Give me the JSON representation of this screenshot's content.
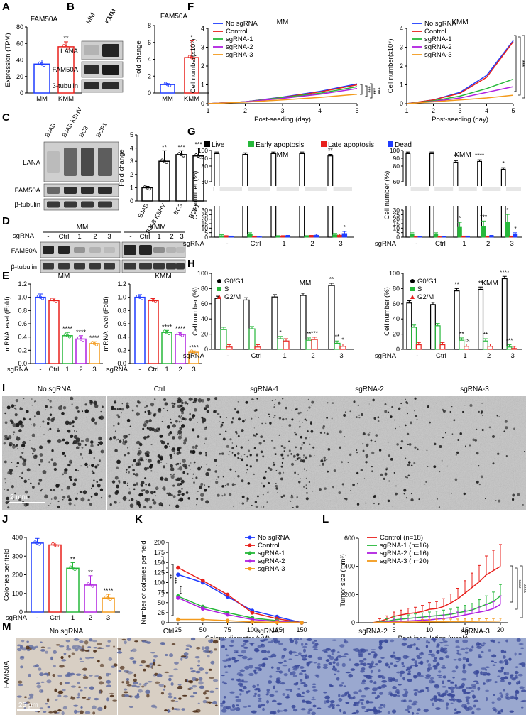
{
  "panel_labels": [
    "A",
    "B",
    "C",
    "D",
    "E",
    "F",
    "G",
    "H",
    "I",
    "J",
    "K",
    "L",
    "M"
  ],
  "stars": {
    "s1": "*",
    "s2": "**",
    "s3": "***",
    "s4": "****",
    "ns": "ns"
  },
  "colors": {
    "blue": "#1f3cff",
    "red": "#e8201c",
    "green": "#26b83a",
    "purple": "#b020e0",
    "orange": "#f39a1c",
    "black": "#000000",
    "gray": "#555555"
  },
  "blots": {
    "B": {
      "cols": [
        "MM",
        "KMM"
      ],
      "rows": [
        "LANA",
        "FAM50A",
        "β-tubulin"
      ]
    },
    "C": {
      "cols": [
        "BJAB",
        "BJAB KSHV",
        "BC3",
        "BCP1"
      ],
      "rows": [
        "LANA",
        "FAM50A",
        "β-tubulin"
      ]
    },
    "D": {
      "groups": [
        "MM",
        "KMM"
      ],
      "sgrna_label": "sgRNA",
      "lanes": [
        "-",
        "Ctrl",
        "1",
        "2",
        "3"
      ],
      "rows": [
        "FAM50A",
        "β-tubulin"
      ]
    }
  },
  "images": {
    "I": {
      "labels": [
        "No sgRNA",
        "Ctrl",
        "sgRNA-1",
        "sgRNA-2",
        "sgRNA-3"
      ],
      "scale": "2 mm"
    },
    "M": {
      "labels": [
        "No sgRNA",
        "Ctrl",
        "sgRNA-1",
        "sgRNA-2",
        "sgRNA-3"
      ],
      "side": "FAM50A",
      "scale": "25 μm"
    }
  },
  "chart_data": [
    {
      "id": "A",
      "type": "bar",
      "title": "FAM50A",
      "categories": [
        "MM",
        "KMM"
      ],
      "values": [
        35,
        56
      ],
      "errors": [
        5,
        6
      ],
      "ylabel": "Expression (TPM)",
      "ylim": [
        0,
        80
      ],
      "yticks": [
        0,
        20,
        40,
        60,
        80
      ],
      "sig": [
        "",
        "**"
      ]
    },
    {
      "id": "B",
      "type": "bar",
      "title": "FAM50A",
      "categories": [
        "MM",
        "KMM"
      ],
      "values": [
        1,
        4.2
      ],
      "errors": [
        0.1,
        2
      ],
      "ylabel": "Fold change",
      "ylim": [
        0,
        8
      ],
      "yticks": [
        0,
        2,
        4,
        6,
        8
      ],
      "sig": [
        "",
        "*"
      ]
    },
    {
      "id": "C",
      "type": "bar",
      "categories": [
        "BJAB",
        "BJAB KSHV",
        "BC3",
        "BCP1"
      ],
      "values": [
        1,
        3,
        3.5,
        3.4
      ],
      "errors": [
        0.1,
        0.8,
        0.3,
        0.6
      ],
      "ylabel": "Fold change",
      "ylim": [
        0,
        5
      ],
      "yticks": [
        0,
        1,
        2,
        3,
        4,
        5
      ],
      "sig": [
        "",
        "**",
        "***",
        "***"
      ]
    },
    {
      "id": "E1",
      "type": "bar",
      "title": "MM",
      "categories": [
        "-",
        "Ctrl",
        "1",
        "2",
        "3"
      ],
      "xlabel": "sgRNA",
      "values": [
        1.0,
        0.95,
        0.42,
        0.37,
        0.3
      ],
      "errors": [
        0.05,
        0.04,
        0.05,
        0.05,
        0.03
      ],
      "ylabel": "mRNA level (Fold)",
      "ylim": [
        0,
        1.2
      ],
      "yticks": [
        0,
        0.2,
        0.4,
        0.6,
        0.8,
        1.0,
        1.2
      ],
      "sig": [
        "",
        "",
        "****",
        "****",
        "****"
      ]
    },
    {
      "id": "E2",
      "type": "bar",
      "title": "KMM",
      "categories": [
        "-",
        "Ctrl",
        "1",
        "2",
        "3"
      ],
      "xlabel": "sgRNA",
      "values": [
        1.0,
        0.95,
        0.47,
        0.44,
        0.17
      ],
      "errors": [
        0.04,
        0.03,
        0.03,
        0.03,
        0.02
      ],
      "ylabel": "mRNA level (Fold)",
      "ylim": [
        0,
        1.2
      ],
      "yticks": [
        0,
        0.2,
        0.4,
        0.6,
        0.8,
        1.0,
        1.2
      ],
      "sig": [
        "",
        "",
        "****",
        "****",
        "****"
      ]
    },
    {
      "id": "F1",
      "type": "line",
      "title": "MM",
      "x": [
        1,
        2,
        3,
        4,
        5
      ],
      "xlabel": "Post-seeding (day)",
      "ylabel": "Cell number(x10⁶)",
      "ylim": [
        0,
        4
      ],
      "yticks": [
        0,
        1,
        2,
        3,
        4
      ],
      "legend": "top-left",
      "series": [
        {
          "name": "No sgRNA",
          "values": [
            0,
            0.1,
            0.35,
            0.65,
            1.05
          ]
        },
        {
          "name": "Control",
          "values": [
            0,
            0.1,
            0.33,
            0.62,
            1.0
          ]
        },
        {
          "name": "sgRNA-1",
          "values": [
            0,
            0.1,
            0.32,
            0.55,
            0.9
          ]
        },
        {
          "name": "sgRNA-2",
          "values": [
            0,
            0.1,
            0.28,
            0.5,
            0.8
          ]
        },
        {
          "name": "sgRNA-3",
          "values": [
            0,
            0.08,
            0.2,
            0.33,
            0.5
          ]
        }
      ],
      "sig": [
        "***",
        "***",
        "***"
      ]
    },
    {
      "id": "F2",
      "type": "line",
      "title": "KMM",
      "x": [
        1,
        2,
        3,
        4,
        5
      ],
      "xlabel": "Post-seeding (day)",
      "ylabel": "Cell number(x10⁶)",
      "ylim": [
        0,
        4
      ],
      "yticks": [
        0,
        1,
        2,
        3,
        4
      ],
      "legend": "top-left",
      "series": [
        {
          "name": "No sgRNA",
          "values": [
            0,
            0.2,
            0.6,
            1.5,
            3.35
          ]
        },
        {
          "name": "Control",
          "values": [
            0,
            0.2,
            0.55,
            1.4,
            3.3
          ]
        },
        {
          "name": "sgRNA-1",
          "values": [
            0,
            0.15,
            0.4,
            0.8,
            1.3
          ]
        },
        {
          "name": "sgRNA-2",
          "values": [
            0,
            0.12,
            0.3,
            0.6,
            0.9
          ]
        },
        {
          "name": "sgRNA-3",
          "values": [
            0,
            0.1,
            0.2,
            0.3,
            0.45
          ]
        }
      ],
      "sig": [
        "***",
        "***",
        "***"
      ]
    },
    {
      "id": "G1",
      "type": "bar",
      "title": "MM",
      "legend": [
        "Live",
        "Early apoptosis",
        "Late apoptosis",
        "Dead"
      ],
      "categories": [
        "-",
        "Ctrl",
        "1",
        "2",
        "3"
      ],
      "xlabel": "sgRNA",
      "ylabel": "Cell number (%)",
      "series": [
        {
          "name": "Live",
          "values": [
            96,
            95,
            96,
            96,
            93
          ]
        },
        {
          "name": "Early apoptosis",
          "values": [
            1.5,
            3,
            0.8,
            0.8,
            2.5
          ]
        },
        {
          "name": "Late apoptosis",
          "values": [
            0.8,
            0.5,
            0.8,
            1,
            2
          ]
        },
        {
          "name": "Dead",
          "values": [
            0.5,
            0.3,
            1,
            2,
            4
          ]
        }
      ],
      "sig": [
        "",
        "",
        "",
        "",
        "**"
      ],
      "sig_dead": [
        "",
        "",
        "",
        "",
        "*"
      ]
    },
    {
      "id": "G2",
      "type": "bar",
      "title": "KMM",
      "categories": [
        "-",
        "Ctrl",
        "1",
        "2",
        "3"
      ],
      "xlabel": "sgRNA",
      "ylabel": "Cell number (%)",
      "series": [
        {
          "name": "Live",
          "values": [
            96,
            96,
            85,
            86,
            76
          ]
        },
        {
          "name": "Early apoptosis",
          "values": [
            3,
            3,
            11,
            12,
            17
          ]
        },
        {
          "name": "Late apoptosis",
          "values": [
            0.3,
            0.3,
            0.5,
            0.5,
            0.5
          ]
        },
        {
          "name": "Dead",
          "values": [
            0.2,
            0.2,
            0.5,
            1,
            3
          ]
        }
      ],
      "sig": [
        "",
        "",
        "**",
        "****",
        "*"
      ],
      "sig_early": [
        "",
        "",
        "*",
        "***",
        "*"
      ],
      "sig_dead": [
        "",
        "",
        "",
        "",
        "*"
      ]
    },
    {
      "id": "H1",
      "type": "bar",
      "title": "MM",
      "legend": [
        "G0/G1",
        "S",
        "G2/M"
      ],
      "categories": [
        "-",
        "Ctrl",
        "1",
        "2",
        "3"
      ],
      "xlabel": "sgRNA",
      "ylabel": "Cell number (%)",
      "ylim": [
        0,
        100
      ],
      "yticks": [
        0,
        20,
        40,
        60,
        80,
        100
      ],
      "series": [
        {
          "name": "G0/G1",
          "values": [
            67,
            65,
            69,
            71,
            84
          ]
        },
        {
          "name": "S",
          "values": [
            26,
            27,
            14,
            12,
            8
          ]
        },
        {
          "name": "G2/M",
          "values": [
            3,
            3,
            11,
            13,
            4
          ]
        }
      ],
      "sig_g": [
        "",
        "",
        "",
        "",
        "**"
      ],
      "sig_s": [
        "",
        "",
        "*",
        "**",
        "**"
      ],
      "sig_m": [
        "",
        "",
        "",
        "***",
        "*"
      ]
    },
    {
      "id": "H2",
      "type": "bar",
      "title": "KMM",
      "categories": [
        "-",
        "Ctrl",
        "1",
        "2",
        "3"
      ],
      "xlabel": "sgRNA",
      "ylabel": "Cell number (%)",
      "ylim": [
        0,
        100
      ],
      "yticks": [
        0,
        20,
        40,
        60,
        80,
        100
      ],
      "series": [
        {
          "name": "G0/G1",
          "values": [
            61,
            59,
            77,
            79,
            93
          ]
        },
        {
          "name": "S",
          "values": [
            29,
            31,
            12,
            11,
            3
          ]
        },
        {
          "name": "G2/M",
          "values": [
            6,
            6,
            4,
            4,
            1
          ]
        }
      ],
      "sig_g": [
        "",
        "",
        "**",
        "**",
        "****"
      ],
      "sig_s": [
        "",
        "",
        "**",
        "**",
        "***"
      ],
      "sig_m": [
        "",
        "",
        "ns",
        "",
        ""
      ]
    },
    {
      "id": "J",
      "type": "bar",
      "categories": [
        "-",
        "Ctrl",
        "1",
        "2",
        "3"
      ],
      "xlabel": "sgRNA",
      "ylabel": "Colonies per field",
      "values": [
        370,
        360,
        235,
        145,
        75
      ],
      "errors": [
        25,
        15,
        30,
        50,
        20
      ],
      "ylim": [
        0,
        400
      ],
      "yticks": [
        0,
        100,
        200,
        300,
        400
      ],
      "sig": [
        "",
        "",
        "**",
        "**",
        "****"
      ]
    },
    {
      "id": "K",
      "type": "line",
      "x": [
        25,
        50,
        75,
        100,
        125,
        150
      ],
      "xlabel": "Colony diameter (μM)",
      "ylabel": "Number of colonies per field",
      "ylim": [
        0,
        200
      ],
      "yticks": [
        0,
        25,
        50,
        75,
        100,
        125,
        150,
        175,
        200
      ],
      "legend": "top-right",
      "series": [
        {
          "name": "No sgRNA",
          "values": [
            120,
            100,
            65,
            30,
            15,
            0
          ]
        },
        {
          "name": "Control",
          "values": [
            137,
            105,
            70,
            25,
            10,
            0
          ]
        },
        {
          "name": "sgRNA-1",
          "values": [
            66,
            40,
            25,
            12,
            5,
            0
          ]
        },
        {
          "name": "sgRNA-2",
          "values": [
            62,
            35,
            20,
            8,
            3,
            0
          ]
        },
        {
          "name": "sgRNA-3",
          "values": [
            8,
            8,
            5,
            2,
            1,
            0
          ]
        }
      ],
      "sig": [
        "**",
        "***",
        "****"
      ]
    },
    {
      "id": "L",
      "type": "line",
      "xlabel": "Post-inoculation (week)",
      "ylabel": "Tumor size (mm³)",
      "ylim": [
        0,
        600
      ],
      "yticks": [
        0,
        200,
        400,
        600
      ],
      "xticks": [
        5,
        10,
        15,
        20
      ],
      "legend": "top-left",
      "series": [
        {
          "name": "Control (n=18)",
          "x": [
            2,
            3,
            4,
            5,
            6,
            7,
            8,
            9,
            10,
            11,
            12,
            13,
            14,
            15,
            16,
            17,
            18,
            19,
            20
          ],
          "values": [
            0,
            10,
            25,
            45,
            55,
            65,
            70,
            80,
            95,
            100,
            115,
            140,
            170,
            210,
            250,
            290,
            340,
            370,
            400
          ]
        },
        {
          "name": "sgRNA-1 (n=16)",
          "x": [
            2,
            3,
            4,
            5,
            6,
            7,
            8,
            9,
            10,
            11,
            12,
            13,
            14,
            15,
            16,
            17,
            18,
            19,
            20
          ],
          "values": [
            0,
            5,
            10,
            20,
            25,
            30,
            35,
            40,
            45,
            50,
            55,
            60,
            70,
            80,
            90,
            110,
            130,
            150,
            190
          ]
        },
        {
          "name": "sgRNA-2 (n=16)",
          "x": [
            2,
            3,
            4,
            5,
            6,
            7,
            8,
            9,
            10,
            11,
            12,
            13,
            14,
            15,
            16,
            17,
            18,
            19,
            20
          ],
          "values": [
            0,
            2,
            5,
            8,
            10,
            12,
            15,
            18,
            20,
            25,
            30,
            35,
            45,
            55,
            65,
            75,
            85,
            100,
            130
          ]
        },
        {
          "name": "sgRNA-3 (n=20)",
          "x": [
            2,
            3,
            4,
            5,
            6,
            7,
            8,
            9,
            10,
            11,
            12,
            13,
            14,
            15,
            16,
            17,
            18,
            19,
            20
          ],
          "values": [
            0,
            1,
            2,
            3,
            4,
            5,
            5,
            6,
            6,
            7,
            7,
            8,
            8,
            9,
            9,
            10,
            10,
            11,
            12
          ]
        }
      ],
      "sig": [
        "****",
        "****",
        "****"
      ]
    }
  ]
}
